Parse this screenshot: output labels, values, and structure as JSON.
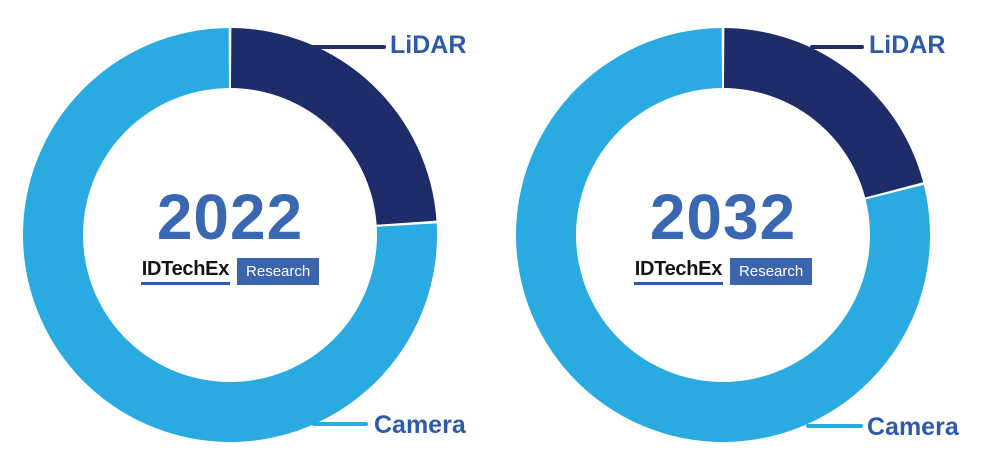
{
  "page": {
    "background": "#ffffff",
    "description": "Two donut charts comparing LiDAR vs Camera share in 2022 and 2032, IDTechEx Research infographic"
  },
  "colors": {
    "lidar_segment": "#1E2D69",
    "camera_segment": "#29ABE2",
    "year_text": "#3A67B1",
    "callout_text": "#2E5BA9",
    "brand_text": "#141414",
    "brand_underline": "#2E5BA9",
    "research_badge_bg": "#3B64AF",
    "research_badge_text": "#ffffff"
  },
  "chart_data": [
    {
      "type": "pie",
      "subtype": "donut",
      "title": "2022",
      "center_label": {
        "year": "2022",
        "brand": "IDTechEx",
        "brand_suffix": "Research"
      },
      "series": [
        {
          "label": "LiDAR",
          "value": 24,
          "color": "#1E2D69"
        },
        {
          "label": "Camera",
          "value": 76,
          "color": "#29ABE2"
        }
      ],
      "values_are_percent": true,
      "values_estimated_from_arc_angles": true,
      "start_angle_deg": 0,
      "direction": "clockwise",
      "inner_radius_ratio": 0.71,
      "legend_position": "callouts",
      "callouts": [
        {
          "label": "LiDAR",
          "position": "top-right",
          "leader_color": "#1E2D69"
        },
        {
          "label": "Camera",
          "position": "bottom-right",
          "leader_color": "#29ABE2"
        }
      ]
    },
    {
      "type": "pie",
      "subtype": "donut",
      "title": "2032",
      "center_label": {
        "year": "2032",
        "brand": "IDTechEx",
        "brand_suffix": "Research"
      },
      "series": [
        {
          "label": "LiDAR",
          "value": 21,
          "color": "#1E2D69"
        },
        {
          "label": "Camera",
          "value": 79,
          "color": "#29ABE2"
        }
      ],
      "values_are_percent": true,
      "values_estimated_from_arc_angles": true,
      "start_angle_deg": 0,
      "direction": "clockwise",
      "inner_radius_ratio": 0.71,
      "legend_position": "callouts",
      "callouts": [
        {
          "label": "LiDAR",
          "position": "top-right",
          "leader_color": "#1E2D69"
        },
        {
          "label": "Camera",
          "position": "bottom-right",
          "leader_color": "#29ABE2"
        }
      ]
    }
  ]
}
